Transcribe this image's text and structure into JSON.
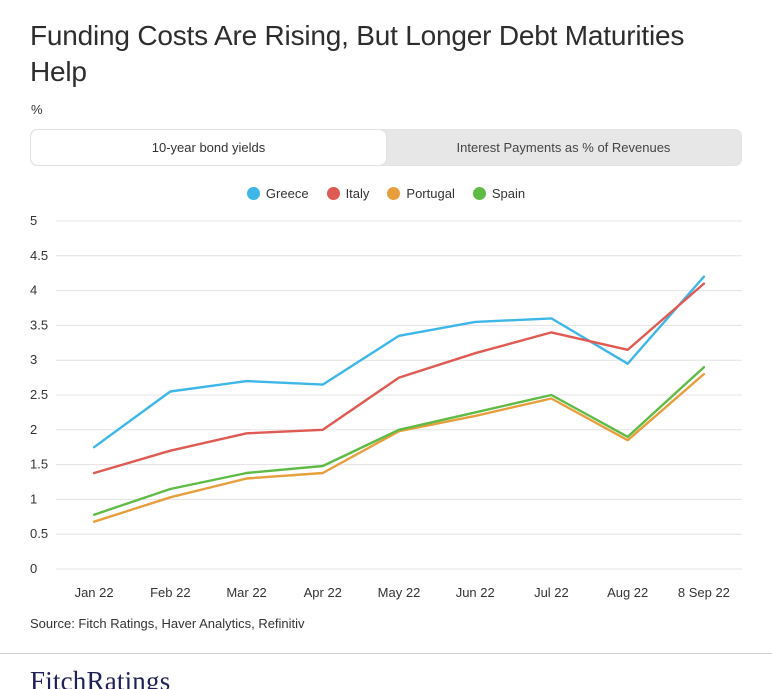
{
  "header": {
    "title": "Funding Costs Are Rising, But Longer Debt Maturities Help",
    "unit_label": "%"
  },
  "tabs": [
    {
      "label": "10-year bond yields",
      "active": true
    },
    {
      "label": "Interest Payments as % of Revenues",
      "active": false
    }
  ],
  "chart_data": {
    "type": "line",
    "title": "Funding Costs Are Rising, But Longer Debt Maturities Help",
    "xlabel": "",
    "ylabel": "%",
    "ylim": [
      0,
      5
    ],
    "ytick_step": 0.5,
    "yticks": [
      0,
      0.5,
      1,
      1.5,
      2,
      2.5,
      3,
      3.5,
      4,
      4.5,
      5
    ],
    "grid": "horizontal",
    "legend_position": "top",
    "categories": [
      "Jan 22",
      "Feb 22",
      "Mar 22",
      "Apr 22",
      "May 22",
      "Jun 22",
      "Jul 22",
      "Aug 22",
      "8 Sep 22"
    ],
    "series": [
      {
        "name": "Greece",
        "color": "#3eb7e8",
        "values": [
          1.75,
          2.55,
          2.7,
          2.65,
          3.35,
          3.55,
          3.6,
          2.95,
          4.2
        ]
      },
      {
        "name": "Italy",
        "color": "#df5a52",
        "values": [
          1.38,
          1.7,
          1.95,
          2.0,
          2.75,
          3.1,
          3.4,
          3.15,
          4.1
        ]
      },
      {
        "name": "Portugal",
        "color": "#e69f3c",
        "values": [
          0.68,
          1.03,
          1.3,
          1.38,
          1.98,
          2.2,
          2.45,
          1.85,
          2.8
        ]
      },
      {
        "name": "Spain",
        "color": "#5fbb46",
        "values": [
          0.78,
          1.15,
          1.38,
          1.48,
          2.0,
          2.25,
          2.5,
          1.9,
          2.9
        ]
      }
    ]
  },
  "footer": {
    "source": "Source: Fitch Ratings, Haver Analytics, Refinitiv",
    "logo": "FitchRatings"
  }
}
